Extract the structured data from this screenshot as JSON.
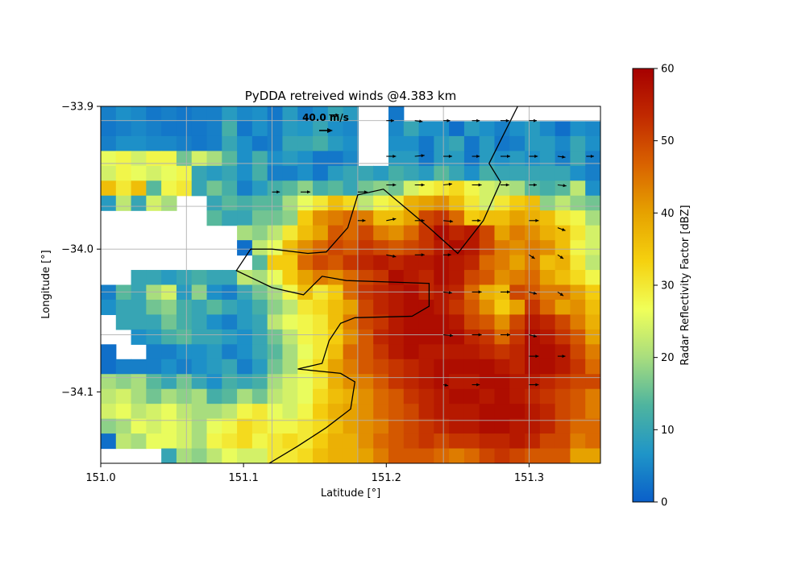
{
  "chart_data": {
    "type": "heatmap",
    "title": "PyDDA retreived winds @4.383 km",
    "xlabel": "Latitude [°]",
    "ylabel": "Longitude [°]",
    "xlim": [
      151.0,
      151.35
    ],
    "ylim": [
      -34.15,
      -33.9
    ],
    "x_ticks": [
      "151.0",
      "151.1",
      "151.2",
      "151.3"
    ],
    "x_tick_values": [
      151.0,
      151.1,
      151.2,
      151.3
    ],
    "y_ticks": [
      "−33.9",
      "−34.0",
      "−34.1"
    ],
    "y_tick_values": [
      -33.9,
      -34.0,
      -34.1
    ],
    "colorbar": {
      "label": "Radar Reflectivity Factor [dBZ]",
      "range": [
        0,
        60
      ],
      "ticks": [
        "0",
        "10",
        "20",
        "30",
        "40",
        "50",
        "60"
      ],
      "tick_values": [
        0,
        10,
        20,
        30,
        40,
        50,
        60
      ],
      "colormap": "pyart_HomeyerRainbow"
    },
    "quiver_key": {
      "label": "40.0 m/s",
      "speed": 40.0
    },
    "grid": true,
    "reflectivity_grid": {
      "rows": 24,
      "cols": 33,
      "x_start": 151.0,
      "x_end": 151.35,
      "y_start": -33.9,
      "y_end": -34.15,
      "null_value": -1,
      "values": [
        [
          4,
          6,
          5,
          3,
          4,
          3,
          4,
          4,
          8,
          5,
          6,
          3,
          8,
          4,
          6,
          10,
          8,
          -1,
          -1,
          3,
          -1,
          -1,
          -1,
          -1,
          -1,
          -1,
          -1,
          -1,
          -1,
          -1,
          -1,
          -1,
          -1
        ],
        [
          3,
          4,
          5,
          4,
          3,
          3,
          3,
          4,
          12,
          3,
          6,
          4,
          8,
          7,
          10,
          6,
          5,
          -1,
          -1,
          5,
          10,
          6,
          6,
          2,
          8,
          6,
          4,
          6,
          8,
          5,
          2,
          6,
          5
        ],
        [
          4,
          6,
          6,
          5,
          5,
          4,
          3,
          4,
          10,
          6,
          3,
          4,
          10,
          10,
          12,
          8,
          6,
          -1,
          -1,
          6,
          6,
          3,
          8,
          10,
          3,
          8,
          3,
          4,
          8,
          8,
          5,
          10,
          6
        ],
        [
          26,
          28,
          24,
          28,
          28,
          16,
          24,
          20,
          14,
          6,
          12,
          6,
          8,
          6,
          3,
          3,
          5,
          -1,
          -1,
          8,
          8,
          3,
          8,
          8,
          3,
          8,
          6,
          8,
          6,
          8,
          4,
          10,
          4
        ],
        [
          24,
          28,
          26,
          24,
          26,
          28,
          10,
          8,
          10,
          6,
          12,
          4,
          4,
          6,
          3,
          8,
          10,
          10,
          8,
          12,
          10,
          8,
          14,
          10,
          6,
          12,
          10,
          10,
          10,
          10,
          10,
          6,
          4
        ],
        [
          36,
          30,
          36,
          14,
          28,
          30,
          10,
          16,
          12,
          4,
          8,
          12,
          14,
          18,
          12,
          14,
          10,
          16,
          18,
          16,
          24,
          28,
          30,
          32,
          28,
          24,
          22,
          20,
          14,
          12,
          14,
          22,
          6
        ],
        [
          8,
          22,
          10,
          24,
          20,
          -1,
          -1,
          10,
          14,
          12,
          14,
          14,
          20,
          26,
          30,
          36,
          32,
          22,
          28,
          30,
          38,
          40,
          42,
          36,
          30,
          24,
          30,
          34,
          36,
          18,
          22,
          18,
          16
        ],
        [
          -1,
          -1,
          -1,
          -1,
          -1,
          -1,
          -1,
          14,
          10,
          10,
          16,
          16,
          18,
          34,
          42,
          44,
          46,
          44,
          36,
          36,
          40,
          50,
          52,
          46,
          34,
          36,
          36,
          40,
          38,
          36,
          30,
          28,
          20
        ],
        [
          -1,
          -1,
          -1,
          -1,
          -1,
          -1,
          -1,
          -1,
          -1,
          20,
          18,
          22,
          30,
          36,
          40,
          48,
          46,
          50,
          44,
          42,
          46,
          52,
          58,
          54,
          56,
          50,
          40,
          44,
          42,
          38,
          36,
          30,
          24
        ],
        [
          -1,
          -1,
          -1,
          -1,
          -1,
          -1,
          -1,
          -1,
          -1,
          2,
          22,
          26,
          36,
          42,
          46,
          50,
          48,
          52,
          50,
          48,
          50,
          52,
          56,
          58,
          56,
          50,
          44,
          42,
          44,
          42,
          36,
          28,
          24
        ],
        [
          -1,
          -1,
          -1,
          -1,
          -1,
          -1,
          -1,
          -1,
          -1,
          -1,
          14,
          34,
          34,
          46,
          50,
          48,
          52,
          54,
          56,
          54,
          56,
          56,
          58,
          56,
          54,
          46,
          44,
          40,
          44,
          36,
          38,
          30,
          22
        ],
        [
          -1,
          -1,
          10,
          10,
          8,
          10,
          12,
          10,
          10,
          22,
          20,
          26,
          34,
          40,
          44,
          42,
          46,
          50,
          52,
          58,
          56,
          54,
          58,
          56,
          50,
          48,
          42,
          44,
          46,
          40,
          36,
          32,
          28
        ],
        [
          4,
          14,
          10,
          20,
          24,
          8,
          18,
          6,
          4,
          10,
          16,
          20,
          28,
          36,
          30,
          34,
          46,
          52,
          54,
          56,
          58,
          54,
          56,
          54,
          46,
          38,
          36,
          50,
          48,
          44,
          44,
          40,
          34
        ],
        [
          6,
          10,
          10,
          16,
          18,
          12,
          10,
          14,
          10,
          8,
          12,
          18,
          22,
          30,
          32,
          36,
          40,
          50,
          54,
          56,
          58,
          58,
          56,
          52,
          48,
          42,
          34,
          40,
          52,
          46,
          40,
          42,
          36
        ],
        [
          -1,
          10,
          10,
          10,
          16,
          12,
          10,
          6,
          4,
          8,
          10,
          22,
          26,
          28,
          30,
          36,
          44,
          50,
          52,
          56,
          58,
          58,
          58,
          56,
          50,
          48,
          42,
          50,
          56,
          54,
          50,
          44,
          38
        ],
        [
          -1,
          -1,
          6,
          8,
          12,
          14,
          10,
          10,
          8,
          6,
          10,
          16,
          22,
          28,
          30,
          34,
          42,
          48,
          54,
          56,
          58,
          58,
          58,
          58,
          54,
          52,
          46,
          52,
          58,
          56,
          52,
          48,
          40
        ],
        [
          2,
          -1,
          -1,
          4,
          4,
          6,
          6,
          8,
          4,
          6,
          10,
          14,
          20,
          26,
          30,
          36,
          46,
          48,
          52,
          56,
          58,
          56,
          56,
          56,
          56,
          54,
          52,
          54,
          58,
          58,
          56,
          50,
          44
        ],
        [
          2,
          4,
          4,
          4,
          6,
          4,
          6,
          8,
          10,
          4,
          8,
          16,
          20,
          28,
          32,
          40,
          44,
          48,
          50,
          52,
          54,
          56,
          58,
          58,
          58,
          58,
          56,
          54,
          58,
          58,
          56,
          52,
          46
        ],
        [
          20,
          18,
          20,
          14,
          10,
          16,
          10,
          6,
          12,
          10,
          12,
          20,
          24,
          26,
          30,
          38,
          42,
          44,
          48,
          52,
          54,
          56,
          58,
          56,
          56,
          58,
          58,
          56,
          56,
          54,
          52,
          50,
          50
        ],
        [
          22,
          24,
          20,
          16,
          20,
          18,
          20,
          12,
          14,
          20,
          16,
          22,
          24,
          26,
          32,
          36,
          38,
          42,
          46,
          48,
          52,
          54,
          56,
          58,
          58,
          56,
          58,
          56,
          54,
          52,
          50,
          48,
          44
        ],
        [
          24,
          26,
          22,
          24,
          26,
          22,
          20,
          20,
          22,
          28,
          30,
          26,
          24,
          28,
          34,
          38,
          40,
          42,
          46,
          48,
          50,
          54,
          56,
          56,
          56,
          58,
          58,
          58,
          56,
          54,
          50,
          48,
          44
        ],
        [
          18,
          20,
          26,
          24,
          26,
          24,
          20,
          26,
          28,
          32,
          30,
          28,
          28,
          30,
          32,
          36,
          40,
          42,
          44,
          48,
          50,
          52,
          54,
          56,
          56,
          58,
          58,
          56,
          56,
          54,
          50,
          46,
          46
        ],
        [
          2,
          22,
          20,
          26,
          26,
          24,
          20,
          28,
          30,
          32,
          28,
          30,
          32,
          30,
          34,
          38,
          38,
          42,
          46,
          48,
          50,
          52,
          50,
          52,
          52,
          54,
          54,
          56,
          54,
          50,
          50,
          44,
          46
        ],
        [
          -1,
          -1,
          -1,
          -1,
          10,
          20,
          18,
          22,
          26,
          24,
          24,
          30,
          30,
          32,
          36,
          38,
          38,
          40,
          44,
          48,
          48,
          48,
          46,
          44,
          46,
          50,
          52,
          50,
          48,
          48,
          48,
          40,
          40
        ]
      ]
    },
    "contour_lines": [
      [
        [
          151.292,
          -33.9
        ],
        [
          151.272,
          -33.94
        ],
        [
          151.28,
          -33.953
        ],
        [
          151.268,
          -33.98
        ],
        [
          151.25,
          -34.003
        ],
        [
          151.23,
          -33.985
        ],
        [
          151.198,
          -33.958
        ],
        [
          151.18,
          -33.962
        ],
        [
          151.173,
          -33.985
        ],
        [
          151.158,
          -34.002
        ],
        [
          151.145,
          -34.003
        ],
        [
          151.12,
          -34.0
        ],
        [
          151.105,
          -34.0
        ],
        [
          151.095,
          -34.015
        ],
        [
          151.12,
          -34.027
        ],
        [
          151.142,
          -34.032
        ],
        [
          151.155,
          -34.019
        ],
        [
          151.172,
          -34.022
        ],
        [
          151.23,
          -34.024
        ],
        [
          151.23,
          -34.04
        ],
        [
          151.218,
          -34.047
        ],
        [
          151.178,
          -34.048
        ],
        [
          151.168,
          -34.052
        ],
        [
          151.16,
          -34.064
        ],
        [
          151.155,
          -34.08
        ],
        [
          151.138,
          -34.084
        ],
        [
          151.168,
          -34.087
        ],
        [
          151.178,
          -34.093
        ],
        [
          151.175,
          -34.112
        ],
        [
          151.158,
          -34.125
        ],
        [
          151.138,
          -34.138
        ],
        [
          151.118,
          -34.15
        ]
      ]
    ],
    "wind_vectors": {
      "note": "u, v in m/s on a sparse grid",
      "vectors": [
        [
          151.16,
          -33.906,
          10,
          0
        ],
        [
          151.2,
          -33.91,
          8,
          0
        ],
        [
          151.22,
          -33.91,
          8,
          -1
        ],
        [
          151.24,
          -33.91,
          7,
          0
        ],
        [
          151.26,
          -33.91,
          8,
          0
        ],
        [
          151.28,
          -33.91,
          9,
          0
        ],
        [
          151.3,
          -33.91,
          8,
          0
        ],
        [
          151.2,
          -33.935,
          10,
          0
        ],
        [
          151.22,
          -33.935,
          10,
          1
        ],
        [
          151.24,
          -33.935,
          9,
          0
        ],
        [
          151.26,
          -33.935,
          8,
          0
        ],
        [
          151.28,
          -33.935,
          10,
          0
        ],
        [
          151.3,
          -33.935,
          9,
          0
        ],
        [
          151.32,
          -33.935,
          8,
          -1
        ],
        [
          151.34,
          -33.935,
          8,
          0
        ],
        [
          151.12,
          -33.96,
          8,
          0
        ],
        [
          151.14,
          -33.96,
          10,
          0
        ],
        [
          151.18,
          -33.96,
          10,
          0
        ],
        [
          151.2,
          -33.955,
          10,
          0
        ],
        [
          151.22,
          -33.955,
          10,
          0
        ],
        [
          151.24,
          -33.955,
          9,
          1
        ],
        [
          151.26,
          -33.955,
          10,
          0
        ],
        [
          151.28,
          -33.955,
          9,
          0
        ],
        [
          151.3,
          -33.955,
          8,
          0
        ],
        [
          151.32,
          -33.955,
          9,
          -1
        ],
        [
          151.18,
          -33.98,
          8,
          0
        ],
        [
          151.2,
          -33.98,
          10,
          2
        ],
        [
          151.22,
          -33.98,
          10,
          0
        ],
        [
          151.24,
          -33.98,
          10,
          -1
        ],
        [
          151.26,
          -33.98,
          9,
          0
        ],
        [
          151.3,
          -33.98,
          10,
          0
        ],
        [
          151.32,
          -33.985,
          8,
          -3
        ],
        [
          151.2,
          -34.004,
          10,
          -2
        ],
        [
          151.22,
          -34.004,
          10,
          0
        ],
        [
          151.24,
          -34.004,
          8,
          0
        ],
        [
          151.3,
          -34.004,
          6,
          -4
        ],
        [
          151.32,
          -34.004,
          6,
          -4
        ],
        [
          151.24,
          -34.03,
          9,
          -1
        ],
        [
          151.26,
          -34.03,
          10,
          0
        ],
        [
          151.28,
          -34.03,
          10,
          0
        ],
        [
          151.3,
          -34.03,
          8,
          -2
        ],
        [
          151.32,
          -34.03,
          6,
          -4
        ],
        [
          151.24,
          -34.06,
          10,
          -1
        ],
        [
          151.26,
          -34.06,
          10,
          0
        ],
        [
          151.28,
          -34.06,
          10,
          0
        ],
        [
          151.3,
          -34.06,
          8,
          -2
        ],
        [
          151.3,
          -34.075,
          10,
          0
        ],
        [
          151.32,
          -34.075,
          8,
          0
        ],
        [
          151.24,
          -34.095,
          5,
          -1
        ],
        [
          151.26,
          -34.095,
          8,
          0
        ],
        [
          151.3,
          -34.095,
          10,
          0
        ]
      ]
    }
  },
  "colors": {
    "axes": "#000000",
    "grid": "#b0b0b0",
    "contour": "#000000",
    "arrow": "#000000",
    "colormap_stops": [
      "#0a5fc9",
      "#1f95c8",
      "#4eb49f",
      "#a8dd7e",
      "#f0ff59",
      "#f5d10f",
      "#e6a200",
      "#d96300",
      "#c12a00",
      "#a60000"
    ]
  }
}
